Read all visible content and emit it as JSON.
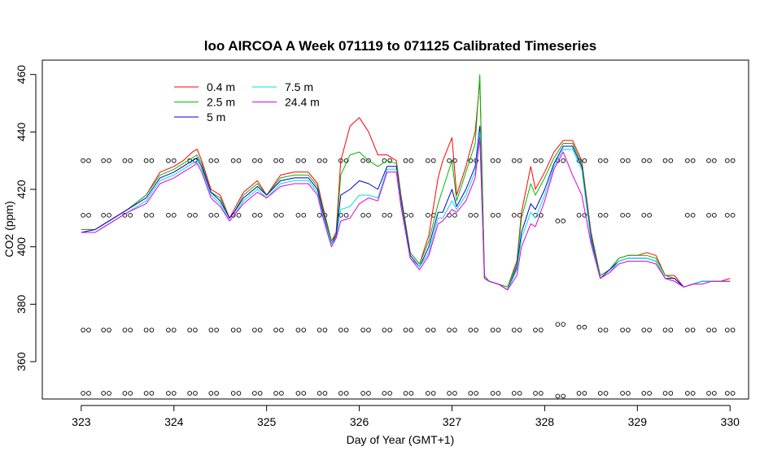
{
  "chart_data": {
    "type": "line",
    "title": "loo AIRCOA A  Week 071119 to 071125  Calibrated Timeseries",
    "xlabel": "Day of Year (GMT+1)",
    "ylabel": "CO2 (ppm)",
    "xlim": [
      322.58,
      330.2
    ],
    "ylim": [
      347,
      465
    ],
    "x_ticks": [
      323,
      324,
      325,
      326,
      327,
      328,
      329,
      330
    ],
    "y_ticks": [
      360,
      380,
      400,
      420,
      440,
      460
    ],
    "legend_position": "top-left",
    "colors": {
      "0.4 m": "#ff0000",
      "2.5 m": "#00bb00",
      "5 m": "#0000cc",
      "7.5 m": "#00dddd",
      "24.4 m": "#dd00dd",
      "calibration_points": "#000000"
    },
    "series": [
      {
        "name": "0.4 m",
        "color": "#ff0000",
        "x": [
          323.0,
          323.15,
          323.3,
          323.5,
          323.7,
          323.85,
          324.0,
          324.1,
          324.2,
          324.25,
          324.3,
          324.4,
          324.5,
          324.6,
          324.65,
          324.75,
          324.9,
          325.0,
          325.15,
          325.3,
          325.45,
          325.55,
          325.6,
          325.7,
          325.75,
          325.8,
          325.9,
          326.0,
          326.1,
          326.2,
          326.3,
          326.4,
          326.45,
          326.55,
          326.65,
          326.75,
          326.85,
          326.9,
          327.0,
          327.05,
          327.15,
          327.25,
          327.3,
          327.35,
          327.4,
          327.5,
          327.6,
          327.7,
          327.75,
          327.85,
          327.9,
          328.0,
          328.1,
          328.2,
          328.3,
          328.4,
          328.5,
          328.6,
          328.7,
          328.8,
          328.9,
          329.0,
          329.1,
          329.2,
          329.3,
          329.4,
          329.5,
          329.6,
          329.7,
          329.8,
          329.9,
          330.0
        ],
        "y": [
          406,
          406,
          409,
          413,
          418,
          426,
          428,
          430,
          433,
          434,
          430,
          420,
          418,
          410,
          413,
          419,
          423,
          418,
          425,
          426,
          426,
          422,
          415,
          402,
          405,
          430,
          442,
          445,
          440,
          432,
          432,
          430,
          418,
          398,
          394,
          404,
          424,
          430,
          438,
          418,
          428,
          440,
          458,
          390,
          388,
          387,
          386,
          395,
          412,
          428,
          420,
          426,
          433,
          437,
          437,
          430,
          405,
          390,
          392,
          396,
          397,
          397,
          398,
          397,
          390,
          390,
          386,
          387,
          388,
          388,
          388,
          389
        ]
      },
      {
        "name": "2.5 m",
        "color": "#00bb00",
        "x": [
          323.0,
          323.15,
          323.3,
          323.5,
          323.7,
          323.85,
          324.0,
          324.1,
          324.2,
          324.25,
          324.3,
          324.4,
          324.5,
          324.6,
          324.65,
          324.75,
          324.9,
          325.0,
          325.15,
          325.3,
          325.45,
          325.55,
          325.6,
          325.7,
          325.75,
          325.8,
          325.9,
          326.0,
          326.1,
          326.2,
          326.3,
          326.4,
          326.45,
          326.55,
          326.65,
          326.75,
          326.85,
          326.9,
          327.0,
          327.05,
          327.15,
          327.25,
          327.3,
          327.35,
          327.4,
          327.5,
          327.6,
          327.7,
          327.75,
          327.85,
          327.9,
          328.0,
          328.1,
          328.2,
          328.3,
          328.4,
          328.5,
          328.6,
          328.7,
          328.8,
          328.9,
          329.0,
          329.1,
          329.2,
          329.3,
          329.4,
          329.5,
          329.6,
          329.7,
          329.8,
          329.9,
          330.0
        ],
        "y": [
          406,
          406,
          409,
          413,
          418,
          425,
          427,
          429,
          431,
          432,
          429,
          419,
          417,
          410,
          412,
          418,
          422,
          418,
          424,
          425,
          425,
          421,
          414,
          402,
          404,
          425,
          432,
          433,
          430,
          428,
          430,
          429,
          417,
          398,
          394,
          402,
          415,
          420,
          430,
          416,
          426,
          436,
          460,
          390,
          388,
          387,
          386,
          394,
          410,
          422,
          418,
          424,
          431,
          436,
          436,
          429,
          404,
          390,
          392,
          396,
          397,
          397,
          397,
          396,
          390,
          389,
          386,
          387,
          388,
          388,
          388,
          388
        ]
      },
      {
        "name": "5 m",
        "color": "#0000cc",
        "x": [
          323.0,
          323.15,
          323.3,
          323.5,
          323.7,
          323.85,
          324.0,
          324.1,
          324.2,
          324.25,
          324.3,
          324.4,
          324.5,
          324.6,
          324.65,
          324.75,
          324.9,
          325.0,
          325.15,
          325.3,
          325.45,
          325.55,
          325.6,
          325.7,
          325.75,
          325.8,
          325.9,
          326.0,
          326.1,
          326.2,
          326.3,
          326.4,
          326.45,
          326.55,
          326.65,
          326.75,
          326.85,
          326.9,
          327.0,
          327.05,
          327.15,
          327.25,
          327.3,
          327.35,
          327.4,
          327.5,
          327.6,
          327.7,
          327.75,
          327.85,
          327.9,
          328.0,
          328.1,
          328.2,
          328.3,
          328.4,
          328.5,
          328.6,
          328.7,
          328.8,
          328.9,
          329.0,
          329.1,
          329.2,
          329.3,
          329.4,
          329.5,
          329.6,
          329.7,
          329.8,
          329.9,
          330.0
        ],
        "y": [
          405,
          406,
          409,
          413,
          417,
          424,
          426,
          428,
          430,
          431,
          428,
          419,
          416,
          410,
          412,
          417,
          421,
          418,
          423,
          424,
          424,
          420,
          413,
          401,
          404,
          418,
          420,
          423,
          422,
          420,
          428,
          428,
          416,
          397,
          393,
          400,
          412,
          412,
          420,
          414,
          420,
          428,
          442,
          389,
          388,
          387,
          385,
          393,
          405,
          415,
          413,
          420,
          429,
          435,
          435,
          428,
          403,
          389,
          392,
          395,
          396,
          396,
          396,
          395,
          389,
          389,
          386,
          387,
          388,
          388,
          388,
          388
        ]
      },
      {
        "name": "7.5 m",
        "color": "#00dddd",
        "x": [
          323.0,
          323.15,
          323.3,
          323.5,
          323.7,
          323.85,
          324.0,
          324.1,
          324.2,
          324.25,
          324.3,
          324.4,
          324.5,
          324.6,
          324.65,
          324.75,
          324.9,
          325.0,
          325.15,
          325.3,
          325.45,
          325.55,
          325.6,
          325.7,
          325.75,
          325.8,
          325.9,
          326.0,
          326.1,
          326.2,
          326.3,
          326.4,
          326.45,
          326.55,
          326.65,
          326.75,
          326.85,
          326.9,
          327.0,
          327.05,
          327.15,
          327.25,
          327.3,
          327.35,
          327.4,
          327.5,
          327.6,
          327.7,
          327.75,
          327.85,
          327.9,
          328.0,
          328.1,
          328.2,
          328.3,
          328.4,
          328.5,
          328.6,
          328.7,
          328.8,
          328.9,
          329.0,
          329.1,
          329.2,
          329.3,
          329.4,
          329.5,
          329.6,
          329.7,
          329.8,
          329.9,
          330.0
        ],
        "y": [
          405,
          405,
          408,
          412,
          416,
          423,
          425,
          427,
          429,
          430,
          427,
          418,
          415,
          409,
          411,
          416,
          420,
          417,
          422,
          423,
          423,
          419,
          412,
          401,
          403,
          413,
          414,
          418,
          418,
          417,
          427,
          427,
          415,
          396,
          393,
          398,
          410,
          410,
          416,
          413,
          418,
          426,
          440,
          389,
          388,
          387,
          385,
          392,
          403,
          412,
          410,
          418,
          428,
          434,
          434,
          427,
          402,
          389,
          391,
          395,
          396,
          396,
          396,
          395,
          389,
          388,
          386,
          387,
          388,
          388,
          388,
          388
        ]
      },
      {
        "name": "24.4 m",
        "color": "#dd00dd",
        "x": [
          323.0,
          323.15,
          323.3,
          323.5,
          323.7,
          323.85,
          324.0,
          324.1,
          324.2,
          324.25,
          324.3,
          324.4,
          324.5,
          324.6,
          324.65,
          324.75,
          324.9,
          325.0,
          325.15,
          325.3,
          325.45,
          325.55,
          325.6,
          325.7,
          325.75,
          325.8,
          325.9,
          326.0,
          326.1,
          326.2,
          326.3,
          326.4,
          326.45,
          326.55,
          326.65,
          326.75,
          326.85,
          326.9,
          327.0,
          327.05,
          327.15,
          327.25,
          327.3,
          327.35,
          327.4,
          327.5,
          327.6,
          327.7,
          327.75,
          327.85,
          327.9,
          328.0,
          328.1,
          328.2,
          328.3,
          328.4,
          328.5,
          328.6,
          328.7,
          328.8,
          328.9,
          329.0,
          329.1,
          329.2,
          329.3,
          329.4,
          329.5,
          329.6,
          329.7,
          329.8,
          329.9,
          330.0
        ],
        "y": [
          405,
          405,
          408,
          412,
          415,
          422,
          424,
          426,
          428,
          429,
          426,
          417,
          414,
          409,
          411,
          415,
          419,
          417,
          421,
          422,
          422,
          418,
          411,
          400,
          403,
          409,
          410,
          415,
          417,
          416,
          426,
          426,
          414,
          396,
          392,
          397,
          408,
          409,
          413,
          412,
          416,
          424,
          438,
          389,
          388,
          387,
          385,
          390,
          400,
          408,
          407,
          416,
          427,
          433,
          425,
          418,
          401,
          389,
          391,
          394,
          395,
          395,
          395,
          394,
          389,
          388,
          386,
          387,
          387,
          388,
          388,
          388
        ]
      }
    ],
    "calibration_points": [
      {
        "x": 323.05,
        "y": 430
      },
      {
        "x": 323.27,
        "y": 430
      },
      {
        "x": 323.5,
        "y": 430
      },
      {
        "x": 323.73,
        "y": 430
      },
      {
        "x": 323.97,
        "y": 430
      },
      {
        "x": 324.2,
        "y": 430
      },
      {
        "x": 324.43,
        "y": 430
      },
      {
        "x": 324.67,
        "y": 430
      },
      {
        "x": 324.9,
        "y": 430
      },
      {
        "x": 325.13,
        "y": 430
      },
      {
        "x": 325.37,
        "y": 430
      },
      {
        "x": 325.6,
        "y": 430
      },
      {
        "x": 325.83,
        "y": 430
      },
      {
        "x": 326.07,
        "y": 430
      },
      {
        "x": 326.3,
        "y": 430
      },
      {
        "x": 326.53,
        "y": 430
      },
      {
        "x": 326.77,
        "y": 430
      },
      {
        "x": 327.0,
        "y": 430
      },
      {
        "x": 327.23,
        "y": 430
      },
      {
        "x": 327.47,
        "y": 430
      },
      {
        "x": 327.7,
        "y": 430
      },
      {
        "x": 327.93,
        "y": 430
      },
      {
        "x": 328.17,
        "y": 430
      },
      {
        "x": 328.4,
        "y": 430
      },
      {
        "x": 328.63,
        "y": 430
      },
      {
        "x": 328.87,
        "y": 430
      },
      {
        "x": 329.1,
        "y": 430
      },
      {
        "x": 329.33,
        "y": 430
      },
      {
        "x": 329.57,
        "y": 430
      },
      {
        "x": 329.8,
        "y": 430
      },
      {
        "x": 330.0,
        "y": 430
      },
      {
        "x": 323.05,
        "y": 411
      },
      {
        "x": 323.27,
        "y": 411
      },
      {
        "x": 323.5,
        "y": 411
      },
      {
        "x": 323.73,
        "y": 411
      },
      {
        "x": 323.97,
        "y": 411
      },
      {
        "x": 324.2,
        "y": 411
      },
      {
        "x": 324.43,
        "y": 411
      },
      {
        "x": 324.67,
        "y": 411
      },
      {
        "x": 324.9,
        "y": 411
      },
      {
        "x": 325.13,
        "y": 411
      },
      {
        "x": 325.37,
        "y": 411
      },
      {
        "x": 325.6,
        "y": 411
      },
      {
        "x": 325.83,
        "y": 411
      },
      {
        "x": 326.07,
        "y": 411
      },
      {
        "x": 326.3,
        "y": 411
      },
      {
        "x": 326.53,
        "y": 411
      },
      {
        "x": 326.77,
        "y": 411
      },
      {
        "x": 327.0,
        "y": 411
      },
      {
        "x": 327.23,
        "y": 411
      },
      {
        "x": 327.47,
        "y": 411
      },
      {
        "x": 327.7,
        "y": 411
      },
      {
        "x": 327.93,
        "y": 411
      },
      {
        "x": 328.17,
        "y": 409
      },
      {
        "x": 328.4,
        "y": 411
      },
      {
        "x": 328.63,
        "y": 411
      },
      {
        "x": 328.87,
        "y": 411
      },
      {
        "x": 329.1,
        "y": 411
      },
      {
        "x": 329.57,
        "y": 411
      },
      {
        "x": 329.8,
        "y": 411
      },
      {
        "x": 330.0,
        "y": 411
      },
      {
        "x": 323.05,
        "y": 371
      },
      {
        "x": 323.27,
        "y": 371
      },
      {
        "x": 323.5,
        "y": 371
      },
      {
        "x": 323.73,
        "y": 371
      },
      {
        "x": 323.97,
        "y": 371
      },
      {
        "x": 324.2,
        "y": 371
      },
      {
        "x": 324.43,
        "y": 371
      },
      {
        "x": 324.67,
        "y": 371
      },
      {
        "x": 324.9,
        "y": 371
      },
      {
        "x": 325.13,
        "y": 371
      },
      {
        "x": 325.37,
        "y": 371
      },
      {
        "x": 325.6,
        "y": 371
      },
      {
        "x": 325.83,
        "y": 371
      },
      {
        "x": 326.07,
        "y": 371
      },
      {
        "x": 326.3,
        "y": 371
      },
      {
        "x": 326.53,
        "y": 371
      },
      {
        "x": 326.77,
        "y": 371
      },
      {
        "x": 327.0,
        "y": 371
      },
      {
        "x": 327.23,
        "y": 371
      },
      {
        "x": 327.47,
        "y": 371
      },
      {
        "x": 327.7,
        "y": 371
      },
      {
        "x": 327.93,
        "y": 371
      },
      {
        "x": 328.17,
        "y": 373
      },
      {
        "x": 328.4,
        "y": 372
      },
      {
        "x": 328.63,
        "y": 371
      },
      {
        "x": 328.87,
        "y": 371
      },
      {
        "x": 329.1,
        "y": 371
      },
      {
        "x": 329.33,
        "y": 371
      },
      {
        "x": 329.57,
        "y": 371
      },
      {
        "x": 329.8,
        "y": 371
      },
      {
        "x": 330.0,
        "y": 371
      },
      {
        "x": 323.05,
        "y": 349
      },
      {
        "x": 323.27,
        "y": 349
      },
      {
        "x": 323.5,
        "y": 349
      },
      {
        "x": 323.73,
        "y": 349
      },
      {
        "x": 323.97,
        "y": 349
      },
      {
        "x": 324.2,
        "y": 349
      },
      {
        "x": 324.43,
        "y": 349
      },
      {
        "x": 324.67,
        "y": 349
      },
      {
        "x": 324.9,
        "y": 349
      },
      {
        "x": 325.13,
        "y": 349
      },
      {
        "x": 325.37,
        "y": 349
      },
      {
        "x": 325.6,
        "y": 349
      },
      {
        "x": 325.83,
        "y": 349
      },
      {
        "x": 326.07,
        "y": 349
      },
      {
        "x": 326.3,
        "y": 349
      },
      {
        "x": 326.53,
        "y": 349
      },
      {
        "x": 326.77,
        "y": 349
      },
      {
        "x": 327.0,
        "y": 349
      },
      {
        "x": 327.23,
        "y": 349
      },
      {
        "x": 327.47,
        "y": 349
      },
      {
        "x": 327.7,
        "y": 349
      },
      {
        "x": 327.93,
        "y": 349
      },
      {
        "x": 328.17,
        "y": 348
      },
      {
        "x": 328.4,
        "y": 349
      },
      {
        "x": 328.63,
        "y": 349
      },
      {
        "x": 328.87,
        "y": 349
      },
      {
        "x": 329.1,
        "y": 349
      },
      {
        "x": 329.33,
        "y": 349
      },
      {
        "x": 329.57,
        "y": 349
      },
      {
        "x": 329.8,
        "y": 349
      },
      {
        "x": 330.0,
        "y": 349
      }
    ]
  }
}
